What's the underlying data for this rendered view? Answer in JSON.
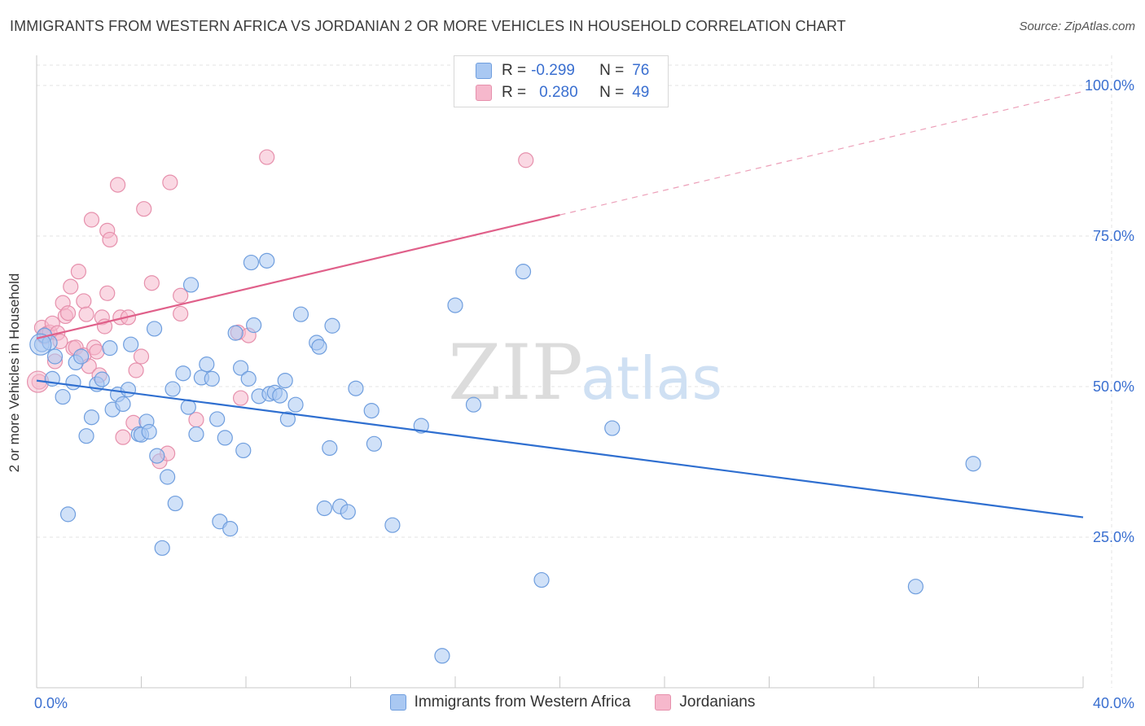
{
  "header": {
    "title": "IMMIGRANTS FROM WESTERN AFRICA VS JORDANIAN 2 OR MORE VEHICLES IN HOUSEHOLD CORRELATION CHART",
    "source": "Source: ZipAtlas.com"
  },
  "watermark": {
    "zip": "ZIP",
    "atlas": "atlas"
  },
  "stats": {
    "rows": [
      {
        "r_label": "R =",
        "r_value": "-0.299",
        "n_label": "N =",
        "n_value": "76",
        "color": "#a9c8f2"
      },
      {
        "r_label": "R =",
        "r_value": "0.280",
        "n_label": "N =",
        "n_value": "49",
        "color": "#f6b8cc"
      }
    ]
  },
  "legend": {
    "items": [
      {
        "label": "Immigrants from Western Africa",
        "color": "#a9c8f2"
      },
      {
        "label": "Jordanians",
        "color": "#f6b8cc"
      }
    ]
  },
  "colors": {
    "blue_fill": "#a9c8f2",
    "blue_stroke": "#6f9ede",
    "blue_line": "#2f6fd0",
    "pink_fill": "#f6b8cc",
    "pink_stroke": "#e690ac",
    "pink_line": "#e0608a",
    "tick_text": "#3a6fd0",
    "grid": "#e3e3e3"
  },
  "chart_data": {
    "type": "scatter",
    "xlabel": "",
    "ylabel": "2 or more Vehicles in Household",
    "xlim": [
      0,
      40
    ],
    "ylim": [
      0,
      105
    ],
    "x_ticks": [
      {
        "value": 0,
        "label": "0.0%"
      },
      {
        "value": 40,
        "label": "40.0%"
      }
    ],
    "y_ticks": [
      {
        "value": 25,
        "label": "25.0%"
      },
      {
        "value": 50,
        "label": "50.0%"
      },
      {
        "value": 75,
        "label": "75.0%"
      },
      {
        "value": 100,
        "label": "100.0%"
      }
    ],
    "grid": true,
    "legend_position": "bottom",
    "series": [
      {
        "name": "Immigrants from Western Africa",
        "r": -0.299,
        "n": 76,
        "trend": {
          "x": [
            0,
            40
          ],
          "y": [
            51.0,
            28.3
          ],
          "style": "solid"
        },
        "points": [
          [
            0.2,
            57.0
          ],
          [
            0.3,
            58.5
          ],
          [
            0.5,
            57.3
          ],
          [
            0.6,
            51.3
          ],
          [
            0.7,
            55.0
          ],
          [
            1.0,
            48.3
          ],
          [
            1.2,
            28.8
          ],
          [
            1.4,
            50.7
          ],
          [
            1.5,
            54.0
          ],
          [
            1.7,
            55.0
          ],
          [
            1.9,
            41.8
          ],
          [
            2.1,
            44.9
          ],
          [
            2.3,
            50.4
          ],
          [
            2.5,
            51.2
          ],
          [
            2.8,
            56.4
          ],
          [
            2.9,
            46.2
          ],
          [
            3.1,
            48.7
          ],
          [
            3.3,
            47.1
          ],
          [
            3.5,
            49.5
          ],
          [
            3.6,
            57.0
          ],
          [
            3.9,
            42.1
          ],
          [
            4.0,
            42.0
          ],
          [
            4.2,
            44.2
          ],
          [
            4.3,
            42.5
          ],
          [
            4.5,
            59.6
          ],
          [
            4.6,
            38.5
          ],
          [
            4.8,
            23.2
          ],
          [
            5.0,
            35.0
          ],
          [
            5.2,
            49.6
          ],
          [
            5.3,
            30.6
          ],
          [
            5.6,
            52.2
          ],
          [
            5.8,
            46.6
          ],
          [
            5.9,
            66.9
          ],
          [
            6.1,
            42.1
          ],
          [
            6.3,
            51.5
          ],
          [
            6.5,
            53.7
          ],
          [
            6.7,
            51.3
          ],
          [
            6.9,
            44.6
          ],
          [
            7.0,
            27.6
          ],
          [
            7.2,
            41.5
          ],
          [
            7.4,
            26.4
          ],
          [
            7.6,
            58.9
          ],
          [
            7.8,
            53.1
          ],
          [
            7.9,
            39.4
          ],
          [
            8.1,
            51.3
          ],
          [
            8.3,
            60.2
          ],
          [
            8.5,
            48.4
          ],
          [
            8.2,
            70.6
          ],
          [
            8.8,
            70.9
          ],
          [
            8.9,
            48.8
          ],
          [
            9.1,
            49.0
          ],
          [
            9.3,
            48.5
          ],
          [
            9.5,
            51.0
          ],
          [
            9.6,
            44.6
          ],
          [
            9.9,
            47.0
          ],
          [
            10.1,
            62.0
          ],
          [
            10.7,
            57.3
          ],
          [
            10.8,
            56.6
          ],
          [
            11.0,
            29.8
          ],
          [
            11.2,
            39.8
          ],
          [
            11.3,
            60.1
          ],
          [
            11.6,
            30.1
          ],
          [
            11.9,
            29.2
          ],
          [
            12.2,
            49.7
          ],
          [
            12.8,
            46.0
          ],
          [
            12.9,
            40.5
          ],
          [
            13.6,
            27.0
          ],
          [
            14.7,
            43.5
          ],
          [
            15.5,
            5.3
          ],
          [
            16.0,
            63.5
          ],
          [
            16.7,
            47.0
          ],
          [
            18.6,
            69.1
          ],
          [
            19.3,
            17.9
          ],
          [
            22.0,
            43.1
          ],
          [
            35.8,
            37.2
          ],
          [
            33.6,
            16.8
          ]
        ]
      },
      {
        "name": "Jordanians",
        "r": 0.28,
        "n": 49,
        "trend": {
          "x": [
            0,
            20,
            40
          ],
          "y": [
            58.0,
            78.5,
            99.0
          ],
          "style": "solid-then-dashed"
        },
        "points": [
          [
            0.1,
            50.8
          ],
          [
            0.2,
            59.8
          ],
          [
            0.3,
            58.3
          ],
          [
            0.4,
            58.8
          ],
          [
            0.5,
            59.0
          ],
          [
            0.6,
            60.5
          ],
          [
            0.7,
            54.2
          ],
          [
            0.8,
            58.9
          ],
          [
            0.9,
            57.5
          ],
          [
            1.0,
            63.9
          ],
          [
            1.1,
            61.7
          ],
          [
            1.2,
            62.2
          ],
          [
            1.3,
            66.6
          ],
          [
            1.4,
            56.4
          ],
          [
            1.5,
            56.5
          ],
          [
            1.6,
            69.1
          ],
          [
            1.8,
            55.2
          ],
          [
            1.8,
            64.2
          ],
          [
            1.9,
            62.0
          ],
          [
            2.0,
            53.4
          ],
          [
            2.1,
            77.7
          ],
          [
            2.2,
            56.5
          ],
          [
            2.3,
            55.8
          ],
          [
            2.4,
            51.9
          ],
          [
            2.5,
            61.5
          ],
          [
            2.6,
            60.0
          ],
          [
            2.7,
            75.9
          ],
          [
            2.7,
            65.5
          ],
          [
            2.8,
            74.4
          ],
          [
            3.1,
            83.5
          ],
          [
            3.2,
            61.5
          ],
          [
            3.3,
            41.6
          ],
          [
            3.5,
            61.5
          ],
          [
            3.7,
            44.0
          ],
          [
            3.8,
            52.7
          ],
          [
            4.1,
            79.5
          ],
          [
            4.4,
            67.2
          ],
          [
            4.7,
            37.6
          ],
          [
            5.0,
            38.9
          ],
          [
            5.1,
            83.9
          ],
          [
            5.5,
            62.1
          ],
          [
            5.5,
            65.1
          ],
          [
            6.1,
            44.5
          ],
          [
            7.7,
            59.0
          ],
          [
            7.8,
            48.1
          ],
          [
            8.1,
            58.5
          ],
          [
            8.8,
            88.1
          ],
          [
            18.7,
            87.6
          ],
          [
            4.0,
            55.0
          ]
        ]
      }
    ]
  }
}
